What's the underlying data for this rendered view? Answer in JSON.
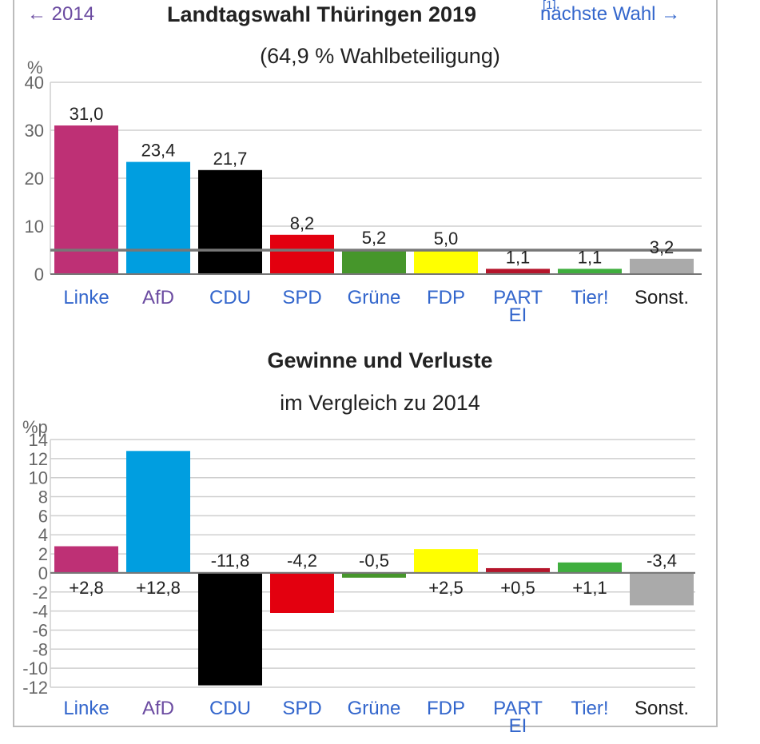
{
  "nav": {
    "prev_label": "← 2014",
    "next_label": "nächste Wahl →",
    "ref": "[1]"
  },
  "header": {
    "title": "Landtagswahl Thüringen 2019",
    "subtitle": "(64,9 % Wahlbeteiligung)",
    "title2": "Gewinne und Verluste",
    "subtitle2": "im Vergleich zu 2014"
  },
  "chart_data": [
    {
      "type": "bar",
      "title": "Landtagswahl Thüringen 2019",
      "ylabel": "%",
      "ylim": [
        0,
        40
      ],
      "yticks": [
        0,
        10,
        20,
        30,
        40
      ],
      "threshold": 5,
      "categories": [
        "Linke",
        "AfD",
        "CDU",
        "SPD",
        "Grüne",
        "FDP",
        "PARTEI",
        "Tier!",
        "Sonst."
      ],
      "category_lines": [
        [
          "Linke"
        ],
        [
          "AfD"
        ],
        [
          "CDU"
        ],
        [
          "SPD"
        ],
        [
          "Grüne"
        ],
        [
          "FDP"
        ],
        [
          "PART",
          "EI"
        ],
        [
          "Tier!"
        ],
        [
          "Sonst."
        ]
      ],
      "values": [
        31.0,
        23.4,
        21.7,
        8.2,
        5.2,
        5.0,
        1.1,
        1.1,
        3.2
      ],
      "labels": [
        "31,0",
        "23,4",
        "21,7",
        "8,2",
        "5,2",
        "5,0",
        "1,1",
        "1,1",
        "3,2"
      ],
      "colors": [
        "#be3075",
        "#009ee0",
        "#000000",
        "#e3000f",
        "#46962b",
        "#ffff00",
        "#b5152b",
        "#3fae3e",
        "#aaaaaa"
      ]
    },
    {
      "type": "bar",
      "title": "Gewinne und Verluste",
      "ylabel": "%p",
      "ylim": [
        -12,
        14
      ],
      "yticks": [
        14,
        12,
        10,
        8,
        6,
        4,
        2,
        0,
        -2,
        -4,
        -6,
        -8,
        -10,
        -12
      ],
      "categories": [
        "Linke",
        "AfD",
        "CDU",
        "SPD",
        "Grüne",
        "FDP",
        "PARTEI",
        "Tier!",
        "Sonst."
      ],
      "category_lines": [
        [
          "Linke"
        ],
        [
          "AfD"
        ],
        [
          "CDU"
        ],
        [
          "SPD"
        ],
        [
          "Grüne"
        ],
        [
          "FDP"
        ],
        [
          "PART",
          "EI"
        ],
        [
          "Tier!"
        ],
        [
          "Sonst."
        ]
      ],
      "values": [
        2.8,
        12.8,
        -11.8,
        -4.2,
        -0.5,
        2.5,
        0.5,
        1.1,
        -3.4
      ],
      "labels": [
        "+2,8",
        "+12,8",
        "-11,8",
        "-4,2",
        "-0,5",
        "+2,5",
        "+0,5",
        "+1,1",
        "-3,4"
      ],
      "colors": [
        "#be3075",
        "#009ee0",
        "#000000",
        "#e3000f",
        "#46962b",
        "#ffff00",
        "#b5152b",
        "#3fae3e",
        "#aaaaaa"
      ]
    }
  ]
}
